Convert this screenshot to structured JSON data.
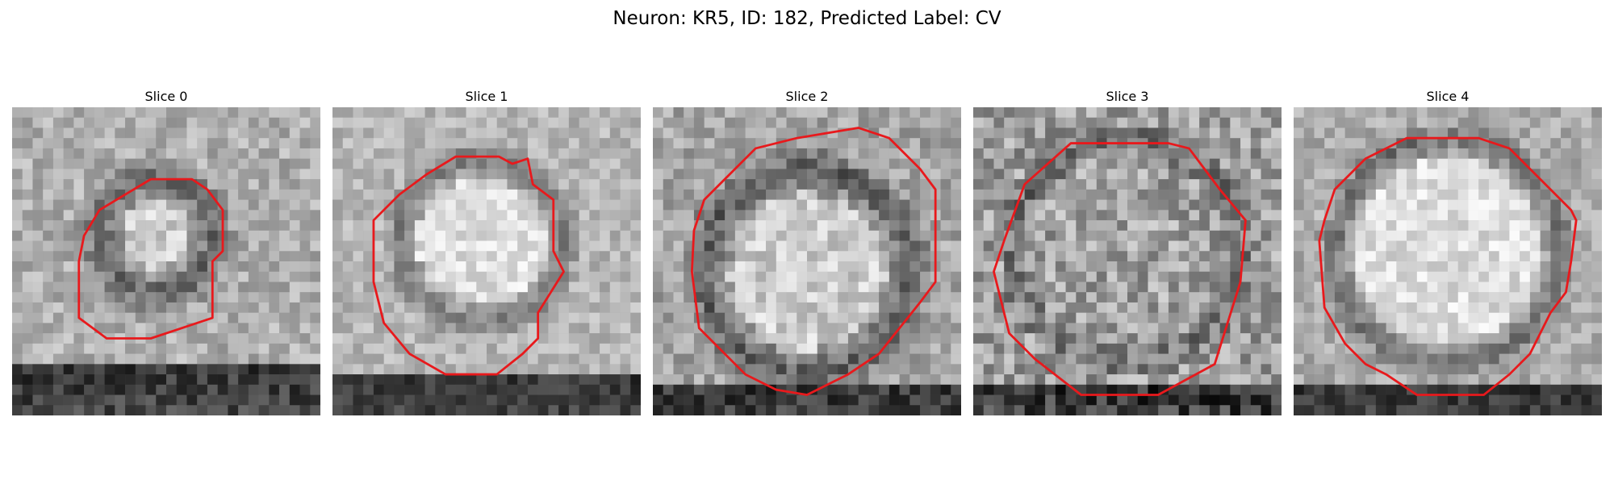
{
  "figure": {
    "title": "Neuron: KR5, ID: 182, Predicted Label: CV"
  },
  "colors": {
    "contour": "#e8191c",
    "background": "#ffffff"
  },
  "panels": [
    {
      "title": "Slice 0"
    },
    {
      "title": "Slice 1"
    },
    {
      "title": "Slice 2"
    },
    {
      "title": "Slice 3"
    },
    {
      "title": "Slice 4"
    }
  ]
}
